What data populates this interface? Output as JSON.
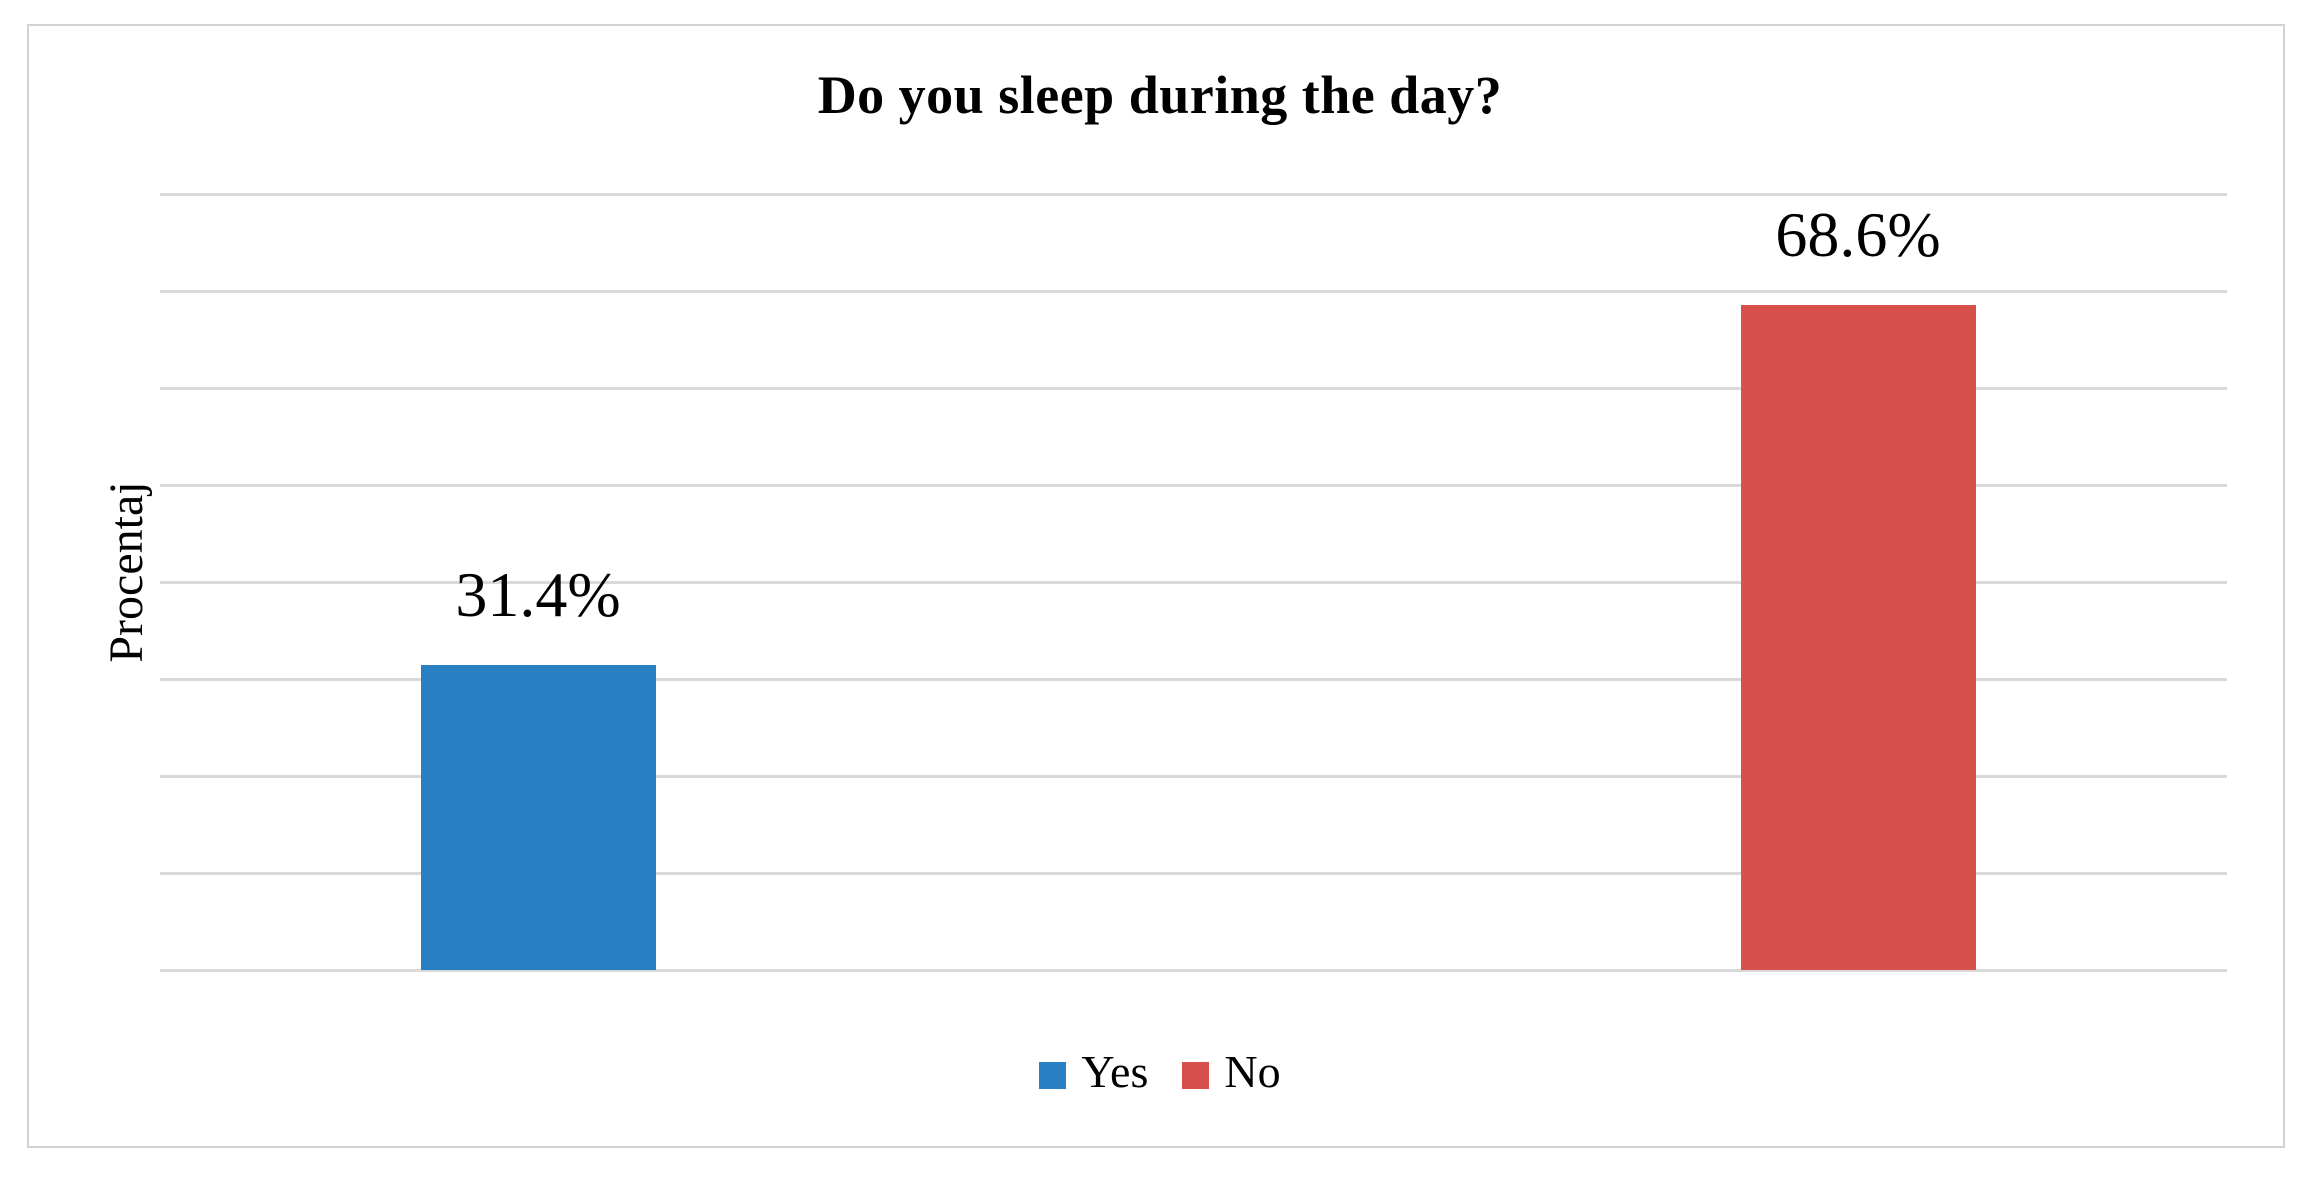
{
  "chart_data": {
    "type": "bar",
    "title": "Do you sleep during the day?",
    "xlabel": "",
    "ylabel": "Procentaj",
    "categories": [
      "Yes",
      "No"
    ],
    "values": [
      31.4,
      68.6
    ],
    "value_labels": [
      "31.4%",
      "68.6%"
    ],
    "series_colors": [
      "#2880C2",
      "#D8504B"
    ],
    "ylim": [
      0,
      80
    ],
    "gridline_step": 10,
    "grid": true,
    "y_tick_labels_shown": false,
    "legend_position": "bottom",
    "legend": [
      {
        "label": "Yes",
        "color": "#2880C2"
      },
      {
        "label": "No",
        "color": "#D8504B"
      }
    ]
  },
  "colors": {
    "background": "#FFFFFF",
    "frame_border": "#D3D3D3",
    "gridline": "#D9D9D9",
    "text": "#000000"
  }
}
